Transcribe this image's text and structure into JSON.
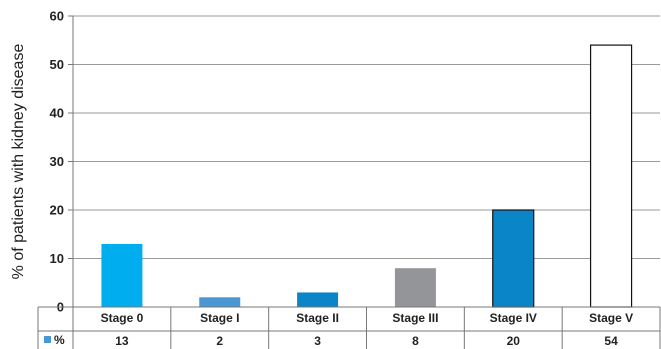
{
  "chart_data": {
    "type": "bar",
    "ylabel": "% of patients with kidney disease",
    "xlabel": "",
    "title": "",
    "categories": [
      "Stage 0",
      "Stage I",
      "Stage II",
      "Stage III",
      "Stage IV",
      "Stage V"
    ],
    "series": [
      {
        "name": "%",
        "values": [
          13,
          2,
          3,
          8,
          20,
          54
        ]
      }
    ],
    "bar_colors": [
      "#00adef",
      "#4a97d3",
      "#0a86c8",
      "#939598",
      "#0a86c8",
      "#ffffff"
    ],
    "bar_outlined": [
      false,
      false,
      false,
      false,
      true,
      true
    ],
    "legend_color": "#4a97d3",
    "ylim": [
      0,
      60
    ],
    "yticks": [
      0,
      10,
      20,
      30,
      40,
      50,
      60
    ],
    "grid": true,
    "data_table": true
  }
}
